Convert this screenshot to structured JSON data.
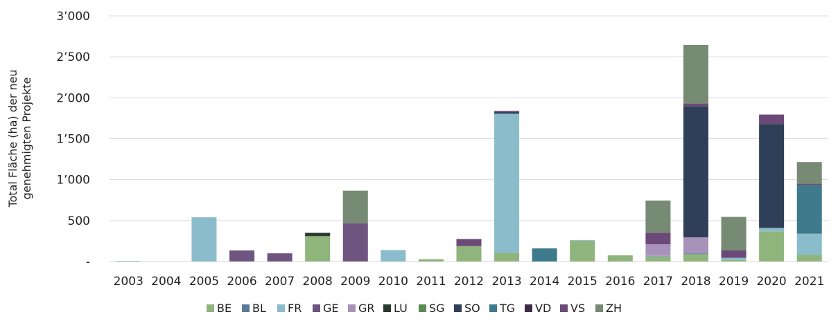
{
  "chart_data": {
    "type": "bar",
    "stacked": true,
    "ylabel_lines": [
      "Total Fläche (ha) der neu",
      "genehmigten Projekte"
    ],
    "ylim": [
      0,
      3000
    ],
    "yticks": [
      0,
      500,
      1000,
      1500,
      2000,
      2500,
      3000
    ],
    "ytick_labels": [
      "-",
      "500",
      "1’000",
      "1’500",
      "2’000",
      "2’500",
      "3’000"
    ],
    "grid": true,
    "legend_position": "bottom",
    "categories": [
      "2003",
      "2004",
      "2005",
      "2006",
      "2007",
      "2008",
      "2009",
      "2010",
      "2011",
      "2012",
      "2013",
      "2014",
      "2015",
      "2016",
      "2017",
      "2018",
      "2019",
      "2020",
      "2021"
    ],
    "series": [
      {
        "name": "BE",
        "color": "#8fb47c",
        "values": [
          0,
          0,
          0,
          0,
          0,
          310,
          0,
          0,
          28,
          190,
          105,
          0,
          255,
          75,
          60,
          90,
          20,
          370,
          80
        ]
      },
      {
        "name": "BL",
        "color": "#5b7a9e",
        "values": [
          0,
          0,
          0,
          0,
          0,
          0,
          0,
          0,
          0,
          0,
          0,
          0,
          0,
          0,
          5,
          10,
          0,
          0,
          0
        ]
      },
      {
        "name": "FR",
        "color": "#8abccb",
        "values": [
          8,
          0,
          540,
          0,
          0,
          0,
          0,
          140,
          0,
          0,
          1700,
          0,
          8,
          0,
          5,
          0,
          25,
          40,
          260
        ]
      },
      {
        "name": "GE",
        "color": "#6d5580",
        "values": [
          0,
          0,
          0,
          135,
          100,
          0,
          465,
          0,
          0,
          0,
          0,
          0,
          0,
          0,
          0,
          0,
          0,
          0,
          0
        ]
      },
      {
        "name": "GR",
        "color": "#a992ba",
        "values": [
          0,
          0,
          0,
          0,
          0,
          0,
          0,
          0,
          0,
          0,
          0,
          0,
          0,
          0,
          140,
          195,
          0,
          0,
          0
        ]
      },
      {
        "name": "LU",
        "color": "#2a3a2c",
        "values": [
          0,
          0,
          0,
          0,
          0,
          40,
          0,
          0,
          0,
          0,
          0,
          0,
          0,
          0,
          0,
          0,
          0,
          0,
          0
        ]
      },
      {
        "name": "SG",
        "color": "#5e8a57",
        "values": [
          0,
          0,
          0,
          0,
          0,
          0,
          0,
          0,
          0,
          0,
          0,
          0,
          0,
          0,
          0,
          0,
          0,
          0,
          0
        ]
      },
      {
        "name": "SO",
        "color": "#2f3f58",
        "values": [
          0,
          0,
          0,
          0,
          0,
          0,
          0,
          0,
          0,
          0,
          20,
          0,
          0,
          0,
          0,
          1600,
          0,
          1270,
          0
        ]
      },
      {
        "name": "TG",
        "color": "#3e7a8c",
        "values": [
          0,
          0,
          0,
          0,
          0,
          0,
          0,
          0,
          0,
          0,
          0,
          160,
          0,
          0,
          0,
          0,
          0,
          0,
          595
        ]
      },
      {
        "name": "VD",
        "color": "#3c2c4a",
        "values": [
          0,
          0,
          0,
          0,
          0,
          0,
          0,
          0,
          0,
          0,
          0,
          0,
          0,
          0,
          0,
          0,
          0,
          0,
          0
        ]
      },
      {
        "name": "VS",
        "color": "#6b4a7a",
        "values": [
          0,
          0,
          0,
          0,
          0,
          0,
          0,
          0,
          0,
          85,
          15,
          0,
          0,
          0,
          140,
          35,
          90,
          115,
          15
        ]
      },
      {
        "name": "ZH",
        "color": "#778b74",
        "values": [
          0,
          0,
          0,
          0,
          0,
          0,
          400,
          0,
          0,
          0,
          0,
          0,
          0,
          0,
          395,
          715,
          410,
          0,
          265
        ]
      }
    ]
  }
}
